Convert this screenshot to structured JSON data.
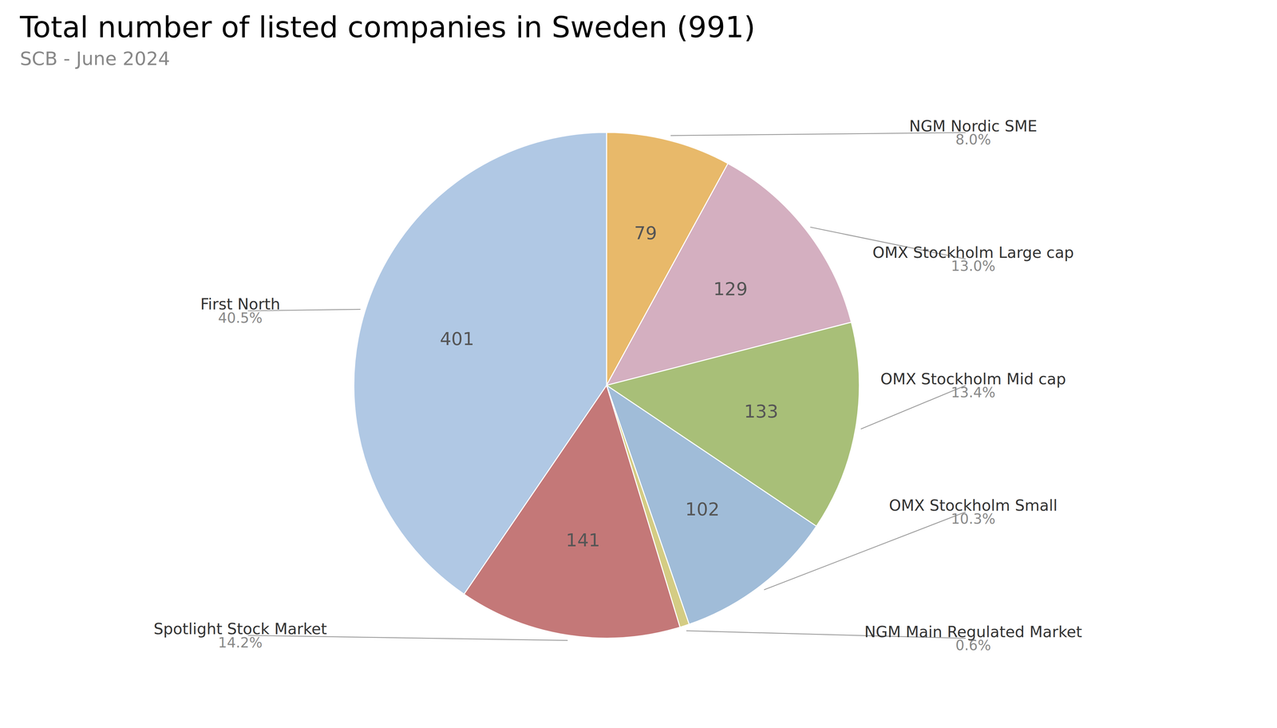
{
  "chart_data": {
    "type": "pie",
    "title": "Total number of listed companies in Sweden (991)",
    "subtitle": "SCB - June 2024",
    "categories": [
      "NGM Nordic SME",
      "OMX Stockholm Large cap",
      "OMX Stockholm Mid cap",
      "OMX Stockholm Small",
      "NGM Main Regulated Market",
      "Spotlight Stock Market",
      "First North"
    ],
    "values": [
      79,
      129,
      133,
      102,
      6,
      141,
      401
    ],
    "value_labels": [
      "79",
      "129",
      "133",
      "102",
      null,
      "141",
      "401"
    ],
    "data_labels": true,
    "percentages": [
      8.0,
      13.0,
      13.4,
      10.3,
      0.6,
      14.2,
      40.5
    ],
    "percentage_labels": [
      "8.0%",
      "13.0%",
      "13.4%",
      "10.3%",
      "0.6%",
      "14.2%",
      "40.5%"
    ],
    "colors": [
      "#e8b96a",
      "#d4afc0",
      "#a8bf78",
      "#a0bcd8",
      "#d4cc84",
      "#c47878",
      "#b0c8e4"
    ]
  }
}
